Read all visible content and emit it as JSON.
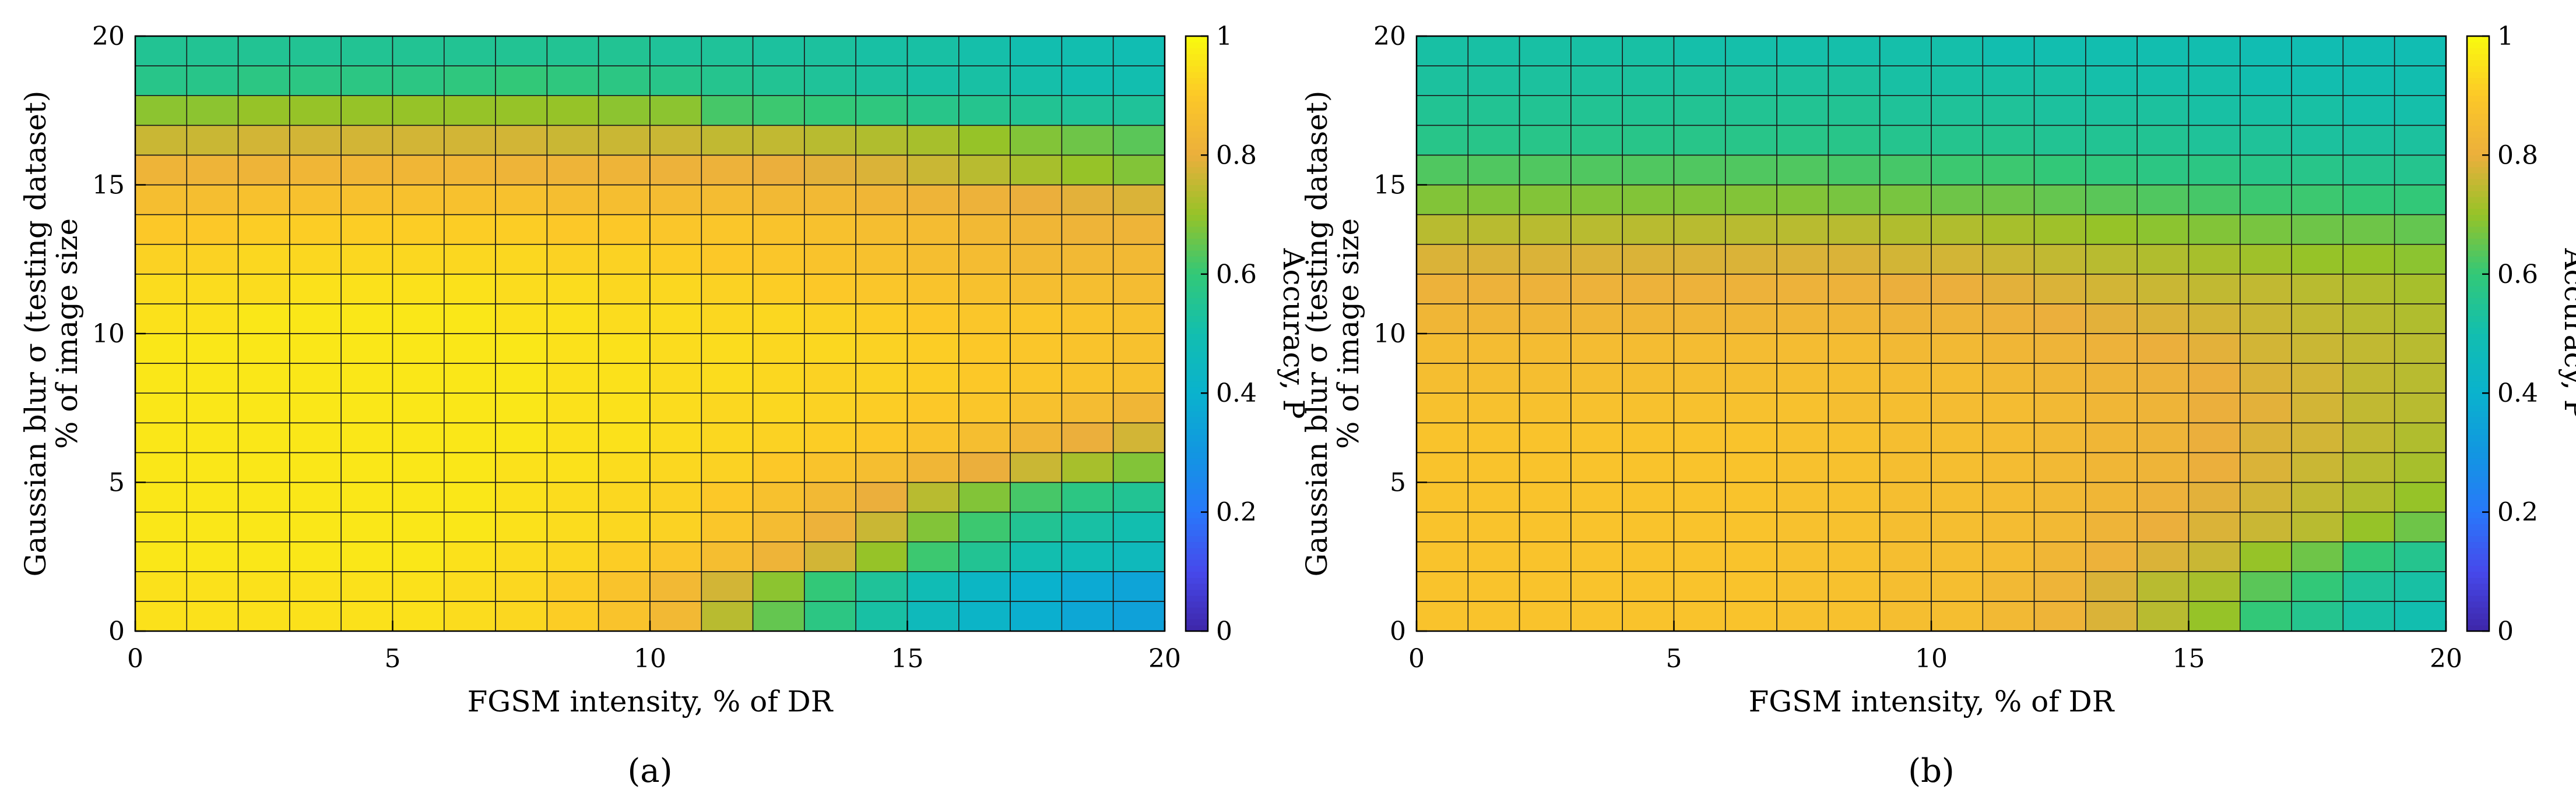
{
  "chart_data": [
    {
      "type": "heatmap",
      "panel_label": "(a)",
      "xlabel": "FGSM intensity, % of DR",
      "ylabel_line1": "Gaussian blur σ (testing dataset)",
      "ylabel_line2": "% of image size",
      "xlim": [
        0,
        20
      ],
      "ylim": [
        0,
        20
      ],
      "x_ticks": [
        "0",
        "5",
        "10",
        "15",
        "20"
      ],
      "y_ticks": [
        "0",
        "5",
        "10",
        "15",
        "20"
      ],
      "colorbar": {
        "label": "Accuracy, P",
        "ticks": [
          "0",
          "0.2",
          "0.4",
          "0.6",
          "0.8",
          "1"
        ],
        "range": [
          0,
          1
        ]
      },
      "x": [
        0,
        1,
        2,
        3,
        4,
        5,
        6,
        7,
        8,
        9,
        10,
        11,
        12,
        13,
        14,
        15,
        16,
        17,
        18,
        19
      ],
      "y": [
        0,
        1,
        2,
        3,
        4,
        5,
        6,
        7,
        8,
        9,
        10,
        11,
        12,
        13,
        14,
        15,
        16,
        17,
        18,
        19
      ],
      "values": [
        [
          0.95,
          0.95,
          0.95,
          0.95,
          0.95,
          0.95,
          0.94,
          0.93,
          0.91,
          0.88,
          0.84,
          0.74,
          0.65,
          0.58,
          0.52,
          0.46,
          0.42,
          0.39,
          0.36,
          0.34
        ],
        [
          0.95,
          0.95,
          0.95,
          0.95,
          0.95,
          0.95,
          0.94,
          0.93,
          0.91,
          0.88,
          0.84,
          0.77,
          0.69,
          0.6,
          0.54,
          0.48,
          0.43,
          0.4,
          0.37,
          0.35
        ],
        [
          0.96,
          0.96,
          0.96,
          0.96,
          0.96,
          0.96,
          0.95,
          0.94,
          0.93,
          0.91,
          0.89,
          0.86,
          0.82,
          0.77,
          0.7,
          0.61,
          0.55,
          0.5,
          0.48,
          0.46
        ],
        [
          0.96,
          0.96,
          0.96,
          0.96,
          0.96,
          0.96,
          0.96,
          0.95,
          0.94,
          0.93,
          0.92,
          0.89,
          0.85,
          0.81,
          0.76,
          0.68,
          0.61,
          0.55,
          0.52,
          0.5
        ],
        [
          0.96,
          0.96,
          0.96,
          0.96,
          0.96,
          0.96,
          0.96,
          0.95,
          0.94,
          0.93,
          0.92,
          0.9,
          0.87,
          0.84,
          0.8,
          0.74,
          0.68,
          0.62,
          0.58,
          0.55
        ],
        [
          0.96,
          0.96,
          0.96,
          0.96,
          0.96,
          0.96,
          0.96,
          0.95,
          0.95,
          0.94,
          0.93,
          0.92,
          0.9,
          0.88,
          0.86,
          0.83,
          0.8,
          0.76,
          0.72,
          0.68
        ],
        [
          0.96,
          0.96,
          0.96,
          0.96,
          0.96,
          0.96,
          0.96,
          0.96,
          0.95,
          0.95,
          0.94,
          0.93,
          0.92,
          0.91,
          0.9,
          0.88,
          0.86,
          0.83,
          0.8,
          0.77
        ],
        [
          0.96,
          0.96,
          0.96,
          0.96,
          0.96,
          0.96,
          0.96,
          0.96,
          0.95,
          0.95,
          0.94,
          0.93,
          0.93,
          0.92,
          0.91,
          0.9,
          0.89,
          0.87,
          0.85,
          0.83
        ],
        [
          0.96,
          0.96,
          0.96,
          0.96,
          0.96,
          0.96,
          0.96,
          0.96,
          0.95,
          0.95,
          0.94,
          0.94,
          0.93,
          0.92,
          0.92,
          0.91,
          0.9,
          0.89,
          0.88,
          0.87
        ],
        [
          0.96,
          0.96,
          0.96,
          0.96,
          0.96,
          0.96,
          0.96,
          0.96,
          0.95,
          0.95,
          0.94,
          0.94,
          0.93,
          0.93,
          0.92,
          0.91,
          0.9,
          0.89,
          0.88,
          0.87
        ],
        [
          0.95,
          0.95,
          0.96,
          0.96,
          0.96,
          0.96,
          0.96,
          0.95,
          0.95,
          0.94,
          0.94,
          0.93,
          0.93,
          0.92,
          0.91,
          0.9,
          0.89,
          0.89,
          0.88,
          0.87
        ],
        [
          0.94,
          0.94,
          0.94,
          0.95,
          0.95,
          0.95,
          0.95,
          0.94,
          0.94,
          0.93,
          0.93,
          0.92,
          0.91,
          0.9,
          0.89,
          0.88,
          0.87,
          0.86,
          0.86,
          0.85
        ],
        [
          0.92,
          0.92,
          0.93,
          0.93,
          0.93,
          0.93,
          0.93,
          0.93,
          0.92,
          0.92,
          0.91,
          0.9,
          0.89,
          0.88,
          0.87,
          0.86,
          0.85,
          0.84,
          0.84,
          0.84
        ],
        [
          0.9,
          0.9,
          0.91,
          0.91,
          0.91,
          0.91,
          0.91,
          0.91,
          0.9,
          0.9,
          0.89,
          0.89,
          0.88,
          0.87,
          0.86,
          0.85,
          0.84,
          0.83,
          0.82,
          0.82
        ],
        [
          0.86,
          0.86,
          0.87,
          0.87,
          0.87,
          0.87,
          0.87,
          0.87,
          0.86,
          0.86,
          0.85,
          0.85,
          0.84,
          0.84,
          0.83,
          0.82,
          0.81,
          0.8,
          0.79,
          0.78
        ],
        [
          0.82,
          0.82,
          0.82,
          0.83,
          0.83,
          0.83,
          0.83,
          0.82,
          0.82,
          0.82,
          0.81,
          0.81,
          0.8,
          0.79,
          0.78,
          0.76,
          0.74,
          0.72,
          0.7,
          0.68
        ],
        [
          0.76,
          0.76,
          0.77,
          0.77,
          0.77,
          0.77,
          0.77,
          0.77,
          0.76,
          0.76,
          0.76,
          0.75,
          0.75,
          0.74,
          0.73,
          0.72,
          0.7,
          0.68,
          0.66,
          0.64
        ],
        [
          0.69,
          0.69,
          0.7,
          0.7,
          0.7,
          0.7,
          0.7,
          0.7,
          0.7,
          0.69,
          0.69,
          0.62,
          0.61,
          0.6,
          0.59,
          0.57,
          0.56,
          0.55,
          0.54,
          0.54
        ],
        [
          0.57,
          0.57,
          0.58,
          0.58,
          0.58,
          0.58,
          0.59,
          0.6,
          0.59,
          0.58,
          0.57,
          0.56,
          0.55,
          0.54,
          0.53,
          0.52,
          0.52,
          0.51,
          0.5,
          0.5
        ],
        [
          0.55,
          0.55,
          0.55,
          0.55,
          0.55,
          0.55,
          0.55,
          0.55,
          0.55,
          0.55,
          0.54,
          0.54,
          0.53,
          0.53,
          0.52,
          0.52,
          0.51,
          0.5,
          0.5,
          0.49
        ]
      ]
    },
    {
      "type": "heatmap",
      "panel_label": "(b)",
      "xlabel": "FGSM intensity, % of DR",
      "ylabel_line1": "Gaussian blur σ (testing dataset)",
      "ylabel_line2": "% of image size",
      "xlim": [
        0,
        20
      ],
      "ylim": [
        0,
        20
      ],
      "x_ticks": [
        "0",
        "5",
        "10",
        "15",
        "20"
      ],
      "y_ticks": [
        "0",
        "5",
        "10",
        "15",
        "20"
      ],
      "colorbar": {
        "label": "Accuracy, P",
        "ticks": [
          "0",
          "0.2",
          "0.4",
          "0.6",
          "0.8",
          "1"
        ],
        "range": [
          0,
          1
        ]
      },
      "x": [
        0,
        1,
        2,
        3,
        4,
        5,
        6,
        7,
        8,
        9,
        10,
        11,
        12,
        13,
        14,
        15,
        16,
        17,
        18,
        19
      ],
      "y": [
        0,
        1,
        2,
        3,
        4,
        5,
        6,
        7,
        8,
        9,
        10,
        11,
        12,
        13,
        14,
        15,
        16,
        17,
        18,
        19
      ],
      "values": [
        [
          0.88,
          0.88,
          0.88,
          0.88,
          0.88,
          0.88,
          0.88,
          0.87,
          0.87,
          0.86,
          0.86,
          0.84,
          0.82,
          0.78,
          0.74,
          0.7,
          0.6,
          0.56,
          0.52,
          0.5
        ],
        [
          0.88,
          0.88,
          0.88,
          0.88,
          0.88,
          0.88,
          0.88,
          0.87,
          0.87,
          0.86,
          0.86,
          0.84,
          0.82,
          0.78,
          0.74,
          0.72,
          0.64,
          0.6,
          0.54,
          0.52
        ],
        [
          0.88,
          0.88,
          0.88,
          0.88,
          0.88,
          0.88,
          0.88,
          0.87,
          0.87,
          0.86,
          0.86,
          0.85,
          0.83,
          0.81,
          0.78,
          0.76,
          0.7,
          0.66,
          0.6,
          0.56
        ],
        [
          0.88,
          0.88,
          0.88,
          0.88,
          0.88,
          0.88,
          0.88,
          0.87,
          0.87,
          0.86,
          0.86,
          0.85,
          0.84,
          0.82,
          0.8,
          0.78,
          0.76,
          0.74,
          0.7,
          0.66
        ],
        [
          0.88,
          0.88,
          0.88,
          0.88,
          0.88,
          0.88,
          0.88,
          0.87,
          0.87,
          0.86,
          0.86,
          0.85,
          0.84,
          0.83,
          0.81,
          0.79,
          0.77,
          0.75,
          0.73,
          0.7
        ],
        [
          0.88,
          0.88,
          0.88,
          0.88,
          0.88,
          0.88,
          0.88,
          0.87,
          0.87,
          0.86,
          0.86,
          0.85,
          0.84,
          0.83,
          0.82,
          0.8,
          0.78,
          0.76,
          0.74,
          0.72
        ],
        [
          0.88,
          0.88,
          0.88,
          0.88,
          0.88,
          0.88,
          0.88,
          0.87,
          0.87,
          0.86,
          0.86,
          0.85,
          0.84,
          0.83,
          0.82,
          0.8,
          0.78,
          0.77,
          0.75,
          0.73
        ],
        [
          0.87,
          0.87,
          0.87,
          0.87,
          0.87,
          0.87,
          0.87,
          0.87,
          0.86,
          0.86,
          0.85,
          0.85,
          0.84,
          0.83,
          0.82,
          0.8,
          0.79,
          0.77,
          0.75,
          0.74
        ],
        [
          0.86,
          0.86,
          0.86,
          0.86,
          0.86,
          0.86,
          0.86,
          0.86,
          0.86,
          0.85,
          0.85,
          0.84,
          0.83,
          0.82,
          0.81,
          0.8,
          0.78,
          0.77,
          0.75,
          0.74
        ],
        [
          0.85,
          0.85,
          0.85,
          0.85,
          0.85,
          0.85,
          0.85,
          0.85,
          0.85,
          0.84,
          0.84,
          0.83,
          0.82,
          0.81,
          0.8,
          0.79,
          0.77,
          0.76,
          0.75,
          0.74
        ],
        [
          0.83,
          0.83,
          0.83,
          0.83,
          0.83,
          0.83,
          0.83,
          0.83,
          0.83,
          0.82,
          0.82,
          0.81,
          0.8,
          0.79,
          0.78,
          0.77,
          0.76,
          0.75,
          0.74,
          0.73
        ],
        [
          0.81,
          0.81,
          0.81,
          0.81,
          0.81,
          0.81,
          0.81,
          0.81,
          0.81,
          0.8,
          0.8,
          0.79,
          0.78,
          0.77,
          0.76,
          0.75,
          0.75,
          0.74,
          0.73,
          0.72
        ],
        [
          0.78,
          0.78,
          0.78,
          0.78,
          0.78,
          0.78,
          0.78,
          0.78,
          0.78,
          0.77,
          0.77,
          0.76,
          0.75,
          0.74,
          0.73,
          0.72,
          0.71,
          0.7,
          0.7,
          0.69
        ],
        [
          0.74,
          0.74,
          0.74,
          0.74,
          0.74,
          0.74,
          0.74,
          0.74,
          0.74,
          0.73,
          0.73,
          0.72,
          0.71,
          0.7,
          0.69,
          0.68,
          0.67,
          0.66,
          0.66,
          0.65
        ],
        [
          0.68,
          0.68,
          0.68,
          0.68,
          0.68,
          0.68,
          0.68,
          0.68,
          0.67,
          0.67,
          0.66,
          0.66,
          0.65,
          0.64,
          0.63,
          0.62,
          0.61,
          0.61,
          0.6,
          0.6
        ],
        [
          0.63,
          0.63,
          0.63,
          0.63,
          0.63,
          0.63,
          0.63,
          0.63,
          0.62,
          0.62,
          0.61,
          0.61,
          0.6,
          0.59,
          0.58,
          0.58,
          0.57,
          0.57,
          0.56,
          0.56
        ],
        [
          0.57,
          0.57,
          0.57,
          0.57,
          0.57,
          0.57,
          0.57,
          0.57,
          0.57,
          0.56,
          0.56,
          0.56,
          0.55,
          0.55,
          0.55,
          0.54,
          0.54,
          0.53,
          0.53,
          0.53
        ],
        [
          0.55,
          0.55,
          0.55,
          0.55,
          0.55,
          0.55,
          0.55,
          0.55,
          0.55,
          0.54,
          0.54,
          0.54,
          0.53,
          0.53,
          0.53,
          0.52,
          0.52,
          0.52,
          0.51,
          0.51
        ],
        [
          0.53,
          0.53,
          0.53,
          0.53,
          0.53,
          0.53,
          0.53,
          0.53,
          0.53,
          0.52,
          0.52,
          0.52,
          0.52,
          0.51,
          0.51,
          0.51,
          0.5,
          0.5,
          0.5,
          0.5
        ],
        [
          0.52,
          0.52,
          0.52,
          0.52,
          0.52,
          0.51,
          0.51,
          0.51,
          0.51,
          0.51,
          0.51,
          0.5,
          0.5,
          0.5,
          0.5,
          0.5,
          0.49,
          0.49,
          0.49,
          0.49
        ]
      ]
    }
  ]
}
